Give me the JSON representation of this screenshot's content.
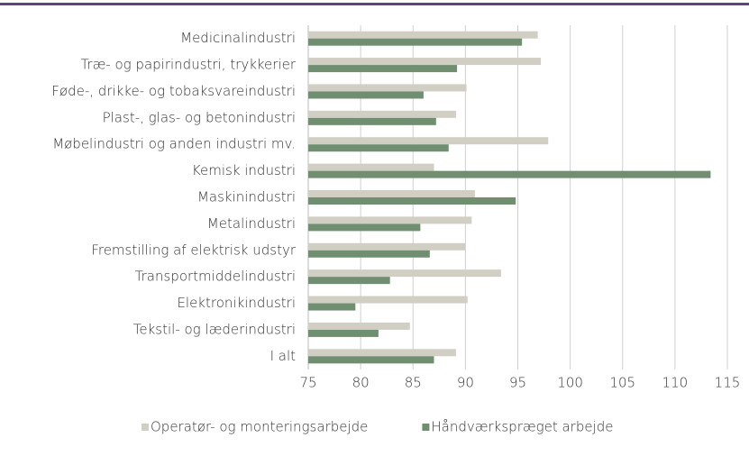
{
  "chart_data": {
    "type": "bar",
    "orientation": "horizontal",
    "categories": [
      "Medicinalindustri",
      "Træ- og papirindustri, trykkerier",
      "Føde-, drikke- og tobaksvareindustri",
      "Plast-, glas- og betonindustri",
      "Møbelindustri og anden industri mv.",
      "Kemisk industri",
      "Maskinindustri",
      "Metalindustri",
      "Fremstilling af elektrisk udstyr",
      "Transportmiddelindustri",
      "Elektronikindustri",
      "Tekstil- og læderindustri",
      "I alt"
    ],
    "series": [
      {
        "name": "Operatør- og monteringsarbejde",
        "color": "#d1cec4",
        "values": [
          96.9,
          97.2,
          90.1,
          89.1,
          97.9,
          87.0,
          90.9,
          90.6,
          90.0,
          93.4,
          90.2,
          84.7,
          89.1
        ]
      },
      {
        "name": "Håndværkspræget arbejde",
        "color": "#6f8f70",
        "values": [
          95.4,
          89.2,
          86.0,
          87.2,
          88.4,
          113.4,
          94.8,
          85.7,
          86.6,
          82.8,
          79.5,
          81.7,
          87.0
        ]
      }
    ],
    "xlim": [
      75,
      115
    ],
    "xticks": [
      75,
      80,
      85,
      90,
      95,
      100,
      105,
      110,
      115
    ],
    "grid": true,
    "legend": "bottom"
  }
}
